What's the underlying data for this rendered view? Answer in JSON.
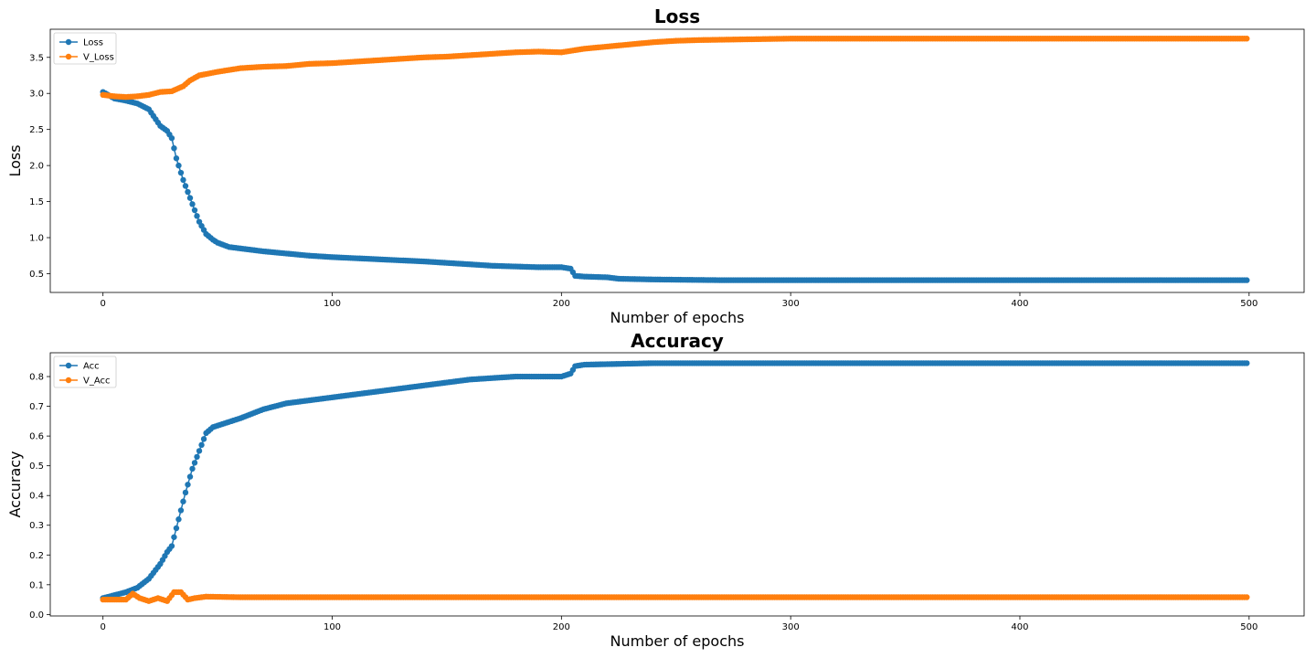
{
  "chart_data": [
    {
      "type": "line",
      "title": "Loss",
      "xlabel": "Number of epochs",
      "ylabel": "Loss",
      "xlim": [
        -23,
        524
      ],
      "ylim": [
        0.24,
        3.89
      ],
      "xticks": [
        0,
        100,
        200,
        300,
        400,
        500
      ],
      "yticks": [
        0.5,
        1.0,
        1.5,
        2.0,
        2.5,
        3.0,
        3.5
      ],
      "ytick_labels": [
        "0.5",
        "1.0",
        "1.5",
        "2.0",
        "2.5",
        "3.0",
        "3.5"
      ],
      "xtick_labels": [
        "0",
        "100",
        "200",
        "300",
        "400",
        "500"
      ],
      "legend_position": "upper-left",
      "grid": false,
      "epochs": 500,
      "series": [
        {
          "name": "Loss",
          "color": "#1f77b4",
          "marker": "circle",
          "points": [
            [
              0,
              3.02
            ],
            [
              5,
              2.93
            ],
            [
              10,
              2.9
            ],
            [
              15,
              2.86
            ],
            [
              20,
              2.78
            ],
            [
              25,
              2.55
            ],
            [
              28,
              2.48
            ],
            [
              30,
              2.38
            ],
            [
              32,
              2.1
            ],
            [
              35,
              1.8
            ],
            [
              38,
              1.55
            ],
            [
              40,
              1.38
            ],
            [
              42,
              1.22
            ],
            [
              45,
              1.05
            ],
            [
              48,
              0.97
            ],
            [
              50,
              0.93
            ],
            [
              55,
              0.87
            ],
            [
              60,
              0.85
            ],
            [
              70,
              0.81
            ],
            [
              80,
              0.78
            ],
            [
              90,
              0.75
            ],
            [
              100,
              0.73
            ],
            [
              120,
              0.7
            ],
            [
              140,
              0.67
            ],
            [
              160,
              0.63
            ],
            [
              170,
              0.61
            ],
            [
              180,
              0.6
            ],
            [
              190,
              0.59
            ],
            [
              200,
              0.59
            ],
            [
              204,
              0.57
            ],
            [
              206,
              0.47
            ],
            [
              210,
              0.46
            ],
            [
              220,
              0.45
            ],
            [
              225,
              0.43
            ],
            [
              240,
              0.42
            ],
            [
              270,
              0.41
            ],
            [
              300,
              0.41
            ],
            [
              400,
              0.41
            ],
            [
              499,
              0.41
            ]
          ]
        },
        {
          "name": "V_Loss",
          "color": "#ff7f0e",
          "marker": "circle",
          "points": [
            [
              0,
              2.98
            ],
            [
              5,
              2.96
            ],
            [
              10,
              2.95
            ],
            [
              15,
              2.96
            ],
            [
              20,
              2.98
            ],
            [
              25,
              3.02
            ],
            [
              30,
              3.03
            ],
            [
              35,
              3.1
            ],
            [
              38,
              3.18
            ],
            [
              42,
              3.25
            ],
            [
              50,
              3.3
            ],
            [
              60,
              3.35
            ],
            [
              70,
              3.37
            ],
            [
              80,
              3.38
            ],
            [
              90,
              3.41
            ],
            [
              100,
              3.42
            ],
            [
              110,
              3.44
            ],
            [
              120,
              3.46
            ],
            [
              130,
              3.48
            ],
            [
              140,
              3.5
            ],
            [
              150,
              3.51
            ],
            [
              160,
              3.53
            ],
            [
              170,
              3.55
            ],
            [
              180,
              3.57
            ],
            [
              190,
              3.58
            ],
            [
              200,
              3.57
            ],
            [
              210,
              3.62
            ],
            [
              220,
              3.65
            ],
            [
              230,
              3.68
            ],
            [
              240,
              3.71
            ],
            [
              250,
              3.73
            ],
            [
              260,
              3.74
            ],
            [
              280,
              3.75
            ],
            [
              300,
              3.76
            ],
            [
              400,
              3.76
            ],
            [
              499,
              3.76
            ]
          ]
        }
      ]
    },
    {
      "type": "line",
      "title": "Accuracy",
      "xlabel": "Number of epochs",
      "ylabel": "Accuracy",
      "xlim": [
        -23,
        524
      ],
      "ylim": [
        -0.005,
        0.88
      ],
      "xticks": [
        0,
        100,
        200,
        300,
        400,
        500
      ],
      "yticks": [
        0.0,
        0.1,
        0.2,
        0.3,
        0.4,
        0.5,
        0.6,
        0.7,
        0.8
      ],
      "ytick_labels": [
        "0.0",
        "0.1",
        "0.2",
        "0.3",
        "0.4",
        "0.5",
        "0.6",
        "0.7",
        "0.8"
      ],
      "xtick_labels": [
        "0",
        "100",
        "200",
        "300",
        "400",
        "500"
      ],
      "legend_position": "upper-left",
      "grid": false,
      "epochs": 500,
      "series": [
        {
          "name": "Acc",
          "color": "#1f77b4",
          "marker": "circle",
          "points": [
            [
              0,
              0.055
            ],
            [
              5,
              0.065
            ],
            [
              10,
              0.075
            ],
            [
              15,
              0.09
            ],
            [
              20,
              0.12
            ],
            [
              25,
              0.17
            ],
            [
              28,
              0.21
            ],
            [
              30,
              0.23
            ],
            [
              33,
              0.32
            ],
            [
              36,
              0.41
            ],
            [
              39,
              0.49
            ],
            [
              42,
              0.55
            ],
            [
              45,
              0.61
            ],
            [
              48,
              0.63
            ],
            [
              52,
              0.64
            ],
            [
              60,
              0.66
            ],
            [
              70,
              0.69
            ],
            [
              80,
              0.71
            ],
            [
              90,
              0.72
            ],
            [
              100,
              0.73
            ],
            [
              120,
              0.75
            ],
            [
              140,
              0.77
            ],
            [
              160,
              0.79
            ],
            [
              180,
              0.8
            ],
            [
              200,
              0.8
            ],
            [
              204,
              0.81
            ],
            [
              206,
              0.835
            ],
            [
              210,
              0.84
            ],
            [
              240,
              0.845
            ],
            [
              300,
              0.845
            ],
            [
              400,
              0.845
            ],
            [
              499,
              0.845
            ]
          ]
        },
        {
          "name": "V_Acc",
          "color": "#ff7f0e",
          "marker": "circle",
          "points": [
            [
              0,
              0.05
            ],
            [
              5,
              0.05
            ],
            [
              10,
              0.05
            ],
            [
              13,
              0.07
            ],
            [
              16,
              0.055
            ],
            [
              20,
              0.045
            ],
            [
              24,
              0.055
            ],
            [
              28,
              0.045
            ],
            [
              31,
              0.075
            ],
            [
              34,
              0.075
            ],
            [
              37,
              0.05
            ],
            [
              40,
              0.055
            ],
            [
              45,
              0.06
            ],
            [
              60,
              0.058
            ],
            [
              80,
              0.058
            ],
            [
              100,
              0.058
            ],
            [
              150,
              0.058
            ],
            [
              200,
              0.058
            ],
            [
              300,
              0.058
            ],
            [
              400,
              0.058
            ],
            [
              499,
              0.058
            ]
          ]
        }
      ]
    }
  ]
}
